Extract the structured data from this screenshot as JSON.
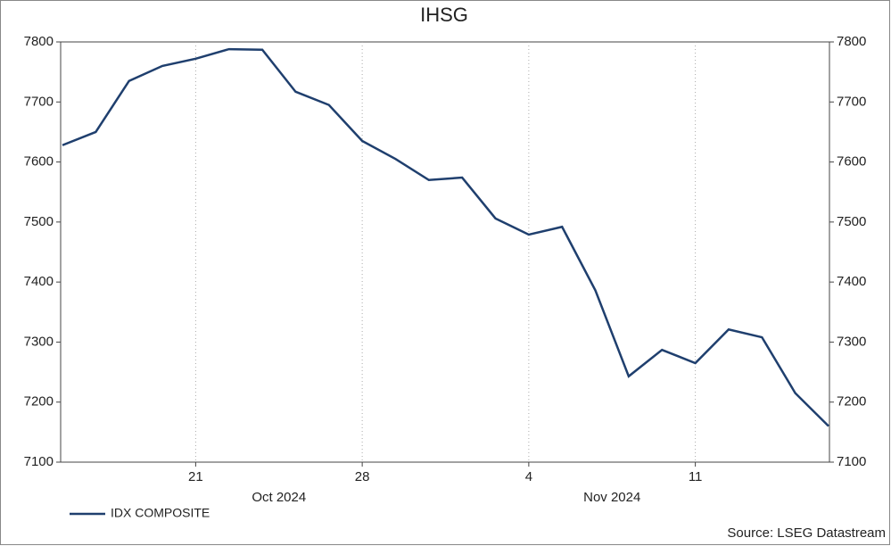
{
  "chart_data": {
    "type": "line",
    "title": "IHSG",
    "categories": [
      null,
      null,
      null,
      null,
      "21",
      null,
      null,
      null,
      null,
      "28",
      null,
      null,
      null,
      null,
      "4",
      null,
      null,
      null,
      null,
      "11",
      null,
      null,
      null,
      null
    ],
    "month_labels": [
      "Oct 2024",
      "Nov 2024"
    ],
    "series": [
      {
        "name": "IDX COMPOSITE",
        "color": "#1f3f6e",
        "values": [
          7628,
          7650,
          7735,
          7760,
          7772,
          7788,
          7787,
          7717,
          7695,
          7635,
          7605,
          7570,
          7574,
          7506,
          7479,
          7492,
          7386,
          7243,
          7287,
          7265,
          7321,
          7308,
          7215,
          7160
        ]
      }
    ],
    "ylim": [
      7100,
      7800
    ],
    "yticks": [
      7100,
      7200,
      7300,
      7400,
      7500,
      7600,
      7700,
      7800
    ],
    "y2lim": [
      7100,
      7800
    ],
    "y2ticks": [
      7100,
      7200,
      7300,
      7400,
      7500,
      7600,
      7700,
      7800
    ],
    "grid": "vertical",
    "legend": "bottom-left",
    "source": "Source: LSEG Datastream"
  }
}
